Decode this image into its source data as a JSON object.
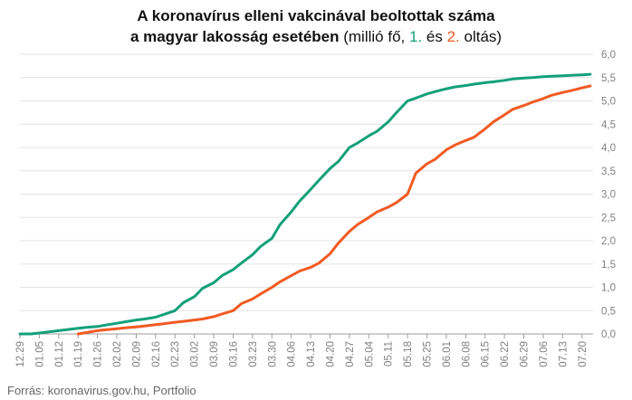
{
  "chart_data": {
    "type": "line",
    "title": {
      "line1": "A koronavírus elleni vakcinával beoltottak száma",
      "line2_bold": "a magyar lakosság esetében",
      "line2_a": " (millió fő, ",
      "s1": "1.",
      "line2_b": " és ",
      "s2": "2.",
      "line2_c": " oltás)"
    },
    "source": "Forrás: koronavirus.gov.hu, Portfolio",
    "ylim": [
      0,
      6
    ],
    "y_ticks": [
      "0,0",
      "0,5",
      "1,0",
      "1,5",
      "2,0",
      "2,5",
      "3,0",
      "3,5",
      "4,0",
      "4,5",
      "5,0",
      "5,5",
      "6,0"
    ],
    "x_ticks": [
      "12.29",
      "01.05",
      "01.12",
      "01.19",
      "01.26",
      "02.02",
      "02.09",
      "02.16",
      "02.23",
      "03.02",
      "03.09",
      "03.16",
      "03.23",
      "03.30",
      "04.06",
      "04.13",
      "04.20",
      "04.27",
      "05.04",
      "05.11",
      "05.18",
      "05.25",
      "06.01",
      "06.08",
      "06.15",
      "06.22",
      "06.29",
      "07.06",
      "07.13",
      "07.20"
    ],
    "x_range": [
      0,
      207
    ],
    "grid": true,
    "colors": {
      "first_dose": "#13a07b",
      "second_dose": "#f15a22",
      "axis": "#9e9e9e",
      "grid": "#e3e3e3"
    },
    "series": [
      {
        "name": "1.",
        "x": [
          0,
          4,
          7,
          10,
          14,
          18,
          21,
          24,
          28,
          31,
          35,
          38,
          42,
          45,
          49,
          52,
          56,
          59,
          63,
          66,
          70,
          73,
          77,
          80,
          84,
          87,
          91,
          94,
          98,
          101,
          105,
          108,
          112,
          115,
          119,
          122,
          126,
          129,
          133,
          136,
          140,
          143,
          147,
          150,
          154,
          157,
          161,
          164,
          168,
          171,
          175,
          178,
          182,
          185,
          189,
          192,
          196,
          199,
          203,
          206
        ],
        "values": [
          0.0,
          0.0,
          0.02,
          0.04,
          0.07,
          0.1,
          0.12,
          0.14,
          0.16,
          0.19,
          0.23,
          0.26,
          0.3,
          0.32,
          0.36,
          0.42,
          0.5,
          0.67,
          0.8,
          0.98,
          1.1,
          1.25,
          1.38,
          1.52,
          1.7,
          1.88,
          2.05,
          2.35,
          2.62,
          2.85,
          3.1,
          3.3,
          3.55,
          3.7,
          4.0,
          4.1,
          4.25,
          4.35,
          4.55,
          4.75,
          5.0,
          5.06,
          5.15,
          5.2,
          5.26,
          5.3,
          5.33,
          5.36,
          5.39,
          5.41,
          5.44,
          5.47,
          5.49,
          5.5,
          5.52,
          5.53,
          5.54,
          5.55,
          5.56,
          5.57
        ]
      },
      {
        "name": "2.",
        "x": [
          21,
          24,
          28,
          31,
          35,
          38,
          42,
          45,
          49,
          52,
          56,
          59,
          63,
          66,
          70,
          73,
          77,
          80,
          84,
          87,
          91,
          94,
          98,
          101,
          105,
          108,
          112,
          115,
          119,
          122,
          126,
          129,
          133,
          136,
          140,
          143,
          147,
          150,
          154,
          157,
          161,
          164,
          168,
          171,
          175,
          178,
          182,
          185,
          189,
          192,
          196,
          199,
          203,
          206
        ],
        "values": [
          0.0,
          0.03,
          0.07,
          0.09,
          0.11,
          0.13,
          0.15,
          0.17,
          0.2,
          0.22,
          0.25,
          0.27,
          0.3,
          0.32,
          0.37,
          0.43,
          0.5,
          0.65,
          0.75,
          0.86,
          1.0,
          1.12,
          1.25,
          1.35,
          1.43,
          1.52,
          1.72,
          1.95,
          2.2,
          2.35,
          2.5,
          2.62,
          2.72,
          2.82,
          3.0,
          3.45,
          3.65,
          3.75,
          3.95,
          4.05,
          4.15,
          4.22,
          4.4,
          4.55,
          4.7,
          4.82,
          4.9,
          4.97,
          5.05,
          5.12,
          5.18,
          5.22,
          5.28,
          5.32
        ]
      }
    ]
  }
}
